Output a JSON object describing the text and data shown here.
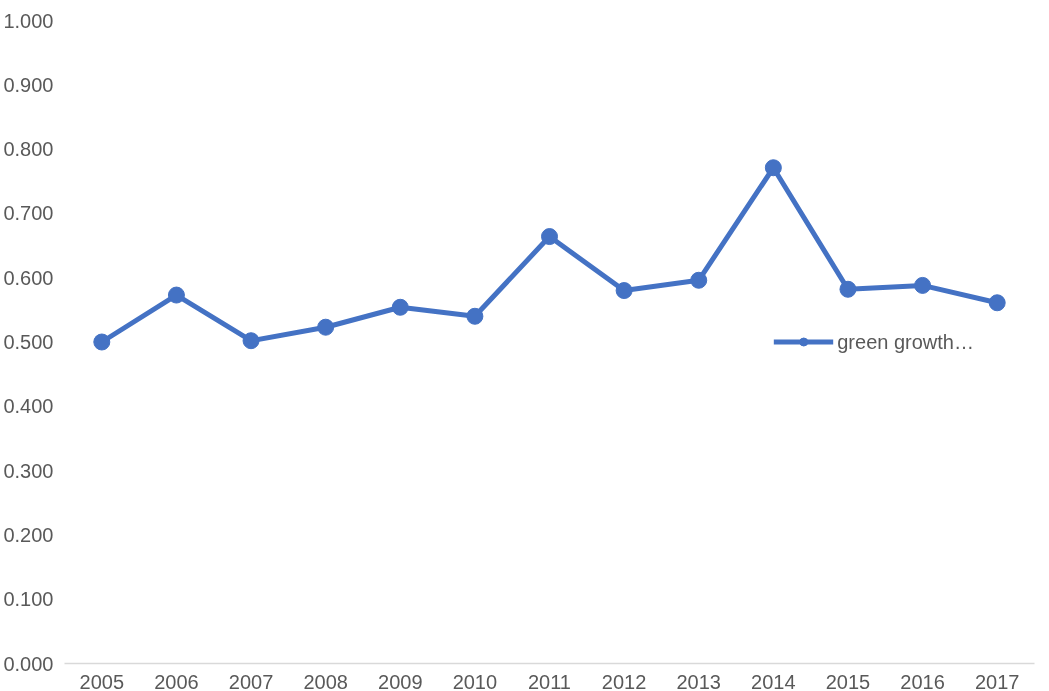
{
  "chart_data": {
    "type": "line",
    "categories": [
      "2005",
      "2006",
      "2007",
      "2008",
      "2009",
      "2010",
      "2011",
      "2012",
      "2013",
      "2014",
      "2015",
      "2016",
      "2017"
    ],
    "series": [
      {
        "name": "green growth…",
        "color": "#4472c4",
        "values": [
          0.5,
          0.573,
          0.502,
          0.523,
          0.554,
          0.54,
          0.664,
          0.58,
          0.596,
          0.771,
          0.582,
          0.588,
          0.561
        ]
      }
    ],
    "ylim": [
      0,
      1
    ],
    "yticks": [
      {
        "value": 0,
        "label": "0.000"
      },
      {
        "value": 0.1,
        "label": "0.100"
      },
      {
        "value": 0.2,
        "label": "0.200"
      },
      {
        "value": 0.3,
        "label": "0.300"
      },
      {
        "value": 0.4,
        "label": "0.400"
      },
      {
        "value": 0.5,
        "label": "0.500"
      },
      {
        "value": 0.6,
        "label": "0.600"
      },
      {
        "value": 0.7,
        "label": "0.700"
      },
      {
        "value": 0.8,
        "label": "0.800"
      },
      {
        "value": 0.9,
        "label": "0.900"
      },
      {
        "value": 1,
        "label": "1.000"
      }
    ],
    "grid": false,
    "legend": "right",
    "marker": "circle",
    "line_style": "solid"
  }
}
